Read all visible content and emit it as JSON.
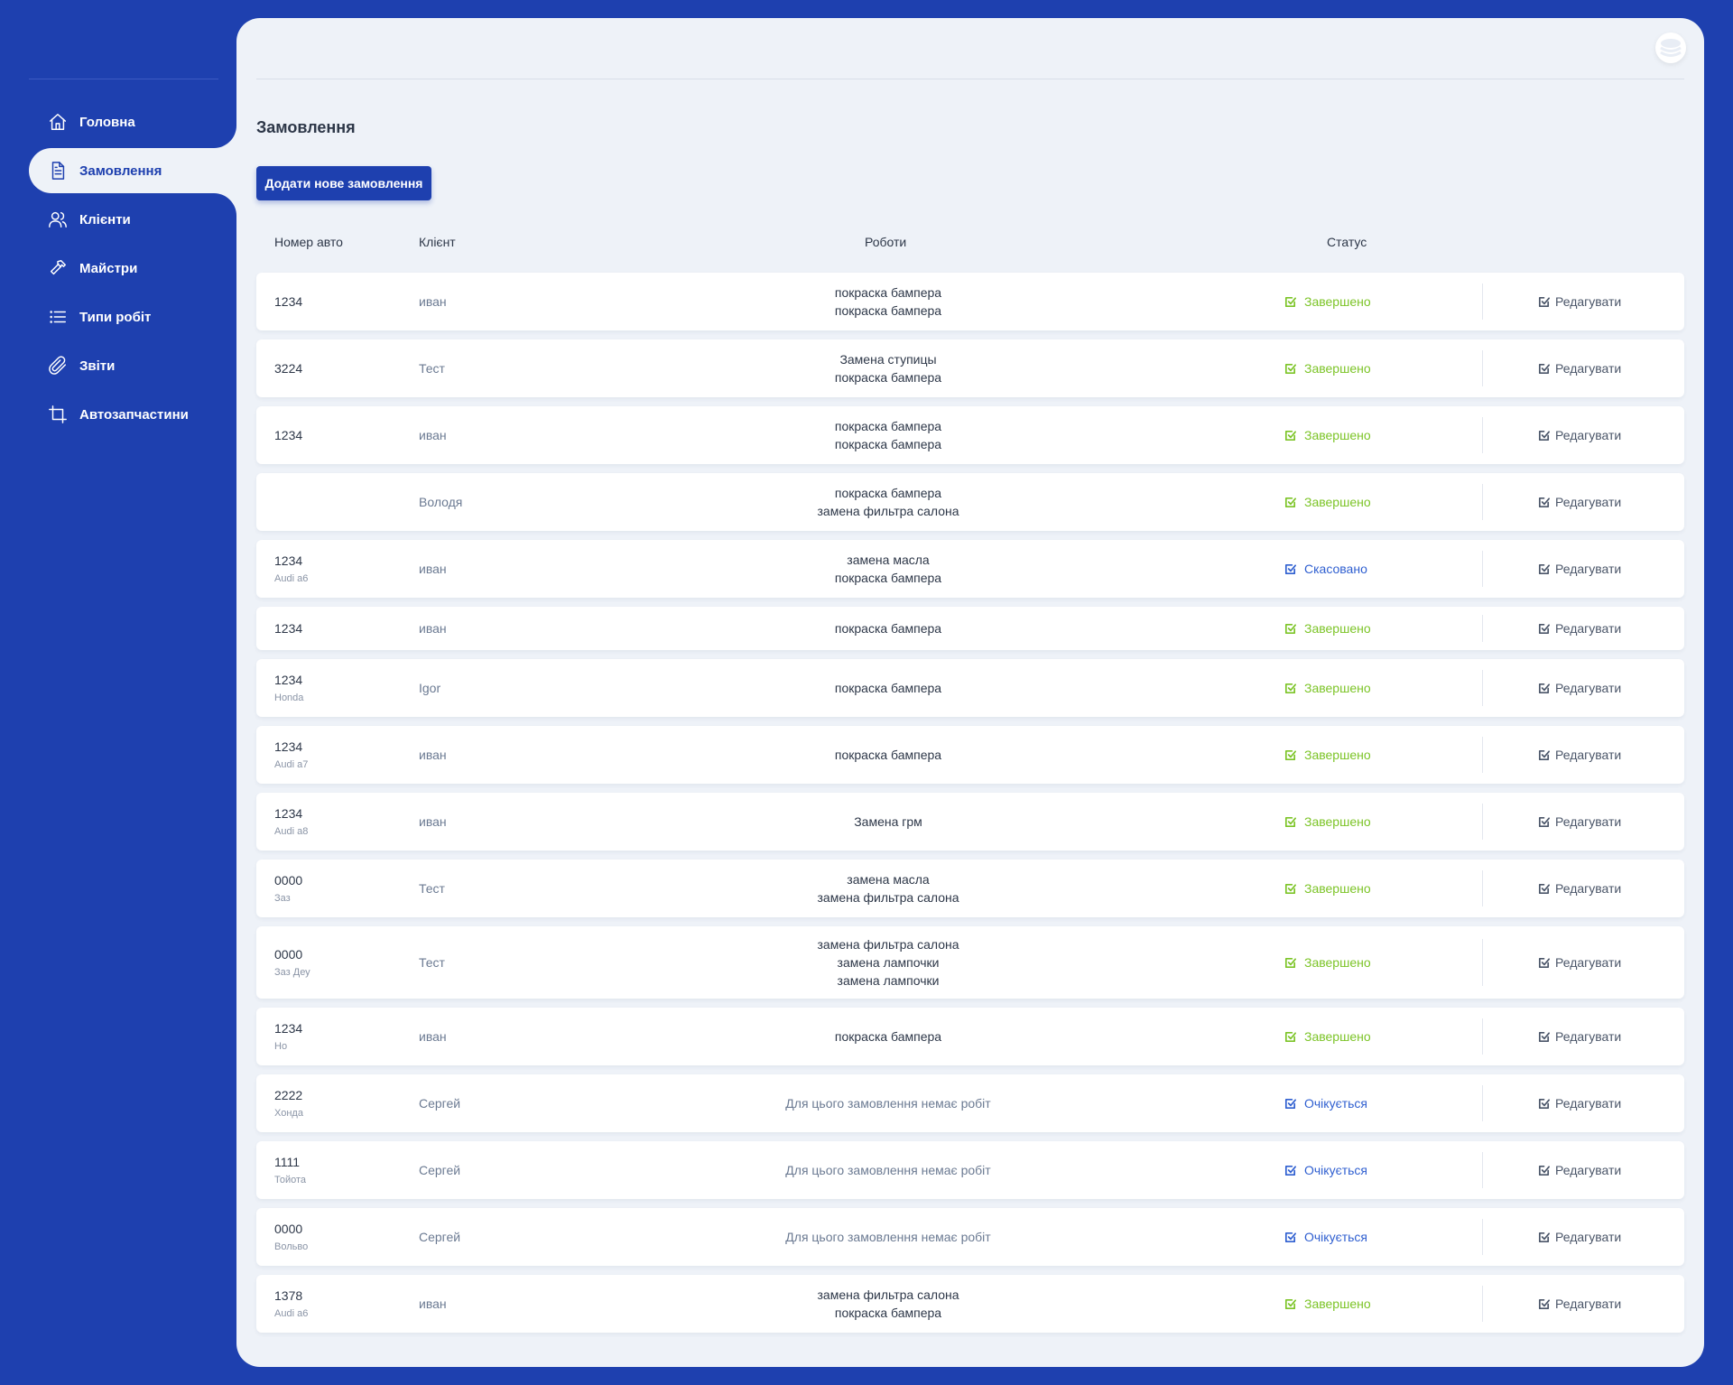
{
  "sidebar": {
    "items": [
      {
        "label": "Головна",
        "icon": "home-icon",
        "active": false
      },
      {
        "label": "Замовлення",
        "icon": "document-icon",
        "active": true
      },
      {
        "label": "Клієнти",
        "icon": "users-icon",
        "active": false
      },
      {
        "label": "Майстри",
        "icon": "hammer-icon",
        "active": false
      },
      {
        "label": "Типи робіт",
        "icon": "list-icon",
        "active": false
      },
      {
        "label": "Звіти",
        "icon": "paperclip-icon",
        "active": false
      },
      {
        "label": "Автозапчастини",
        "icon": "crop-icon",
        "active": false
      }
    ]
  },
  "main": {
    "title": "Замовлення",
    "add_button": "Додати нове замовлення",
    "columns": {
      "plate": "Номер авто",
      "client": "Клієнт",
      "works": "Роботи",
      "status": "Статус"
    },
    "edit_label": "Редагувати"
  },
  "colors": {
    "brand": "#1e40af",
    "panel": "#eef2f8",
    "status_done": "#7cc427",
    "status_cancelled": "#2f5fd0",
    "status_pending": "#2f5fd0"
  },
  "orders": [
    {
      "plate": "1234",
      "model": "",
      "client": "иван",
      "works": [
        "покраска бампера",
        "покраска бампера"
      ],
      "status": "Завершено",
      "status_type": "done"
    },
    {
      "plate": "3224",
      "model": "",
      "client": "Тест",
      "works": [
        "Замена ступицы",
        "покраска бампера"
      ],
      "status": "Завершено",
      "status_type": "done"
    },
    {
      "plate": "1234",
      "model": "",
      "client": "иван",
      "works": [
        "покраска бампера",
        "покраска бампера"
      ],
      "status": "Завершено",
      "status_type": "done"
    },
    {
      "plate": "",
      "model": "",
      "client": "Володя",
      "works": [
        "покраска бампера",
        "замена фильтра салона"
      ],
      "status": "Завершено",
      "status_type": "done"
    },
    {
      "plate": "1234",
      "model": "Audi a6",
      "client": "иван",
      "works": [
        "замена масла",
        "покраска бампера"
      ],
      "status": "Скасовано",
      "status_type": "cancelled"
    },
    {
      "plate": "1234",
      "model": "",
      "client": "иван",
      "works": [
        "покраска бампера"
      ],
      "status": "Завершено",
      "status_type": "done"
    },
    {
      "plate": "1234",
      "model": "Honda",
      "client": "Igor",
      "works": [
        "покраска бампера"
      ],
      "status": "Завершено",
      "status_type": "done"
    },
    {
      "plate": "1234",
      "model": "Audi a7",
      "client": "иван",
      "works": [
        "покраска бампера"
      ],
      "status": "Завершено",
      "status_type": "done"
    },
    {
      "plate": "1234",
      "model": "Audi a8",
      "client": "иван",
      "works": [
        "Замена грм"
      ],
      "status": "Завершено",
      "status_type": "done"
    },
    {
      "plate": "0000",
      "model": "Заз",
      "client": "Тест",
      "works": [
        "замена масла",
        "замена фильтра салона"
      ],
      "status": "Завершено",
      "status_type": "done"
    },
    {
      "plate": "0000",
      "model": "Заз Деу",
      "client": "Тест",
      "works": [
        "замена фильтра салона",
        "замена лампочки",
        "замена лампочки"
      ],
      "status": "Завершено",
      "status_type": "done"
    },
    {
      "plate": "1234",
      "model": "Но",
      "client": "иван",
      "works": [
        "покраска бампера"
      ],
      "status": "Завершено",
      "status_type": "done"
    },
    {
      "plate": "2222",
      "model": "Хонда",
      "client": "Сергей",
      "works": [
        "Для цього замовлення немає робіт"
      ],
      "status": "Очікується",
      "status_type": "pending",
      "no_works": true
    },
    {
      "plate": "1111",
      "model": "Тойота",
      "client": "Сергей",
      "works": [
        "Для цього замовлення немає робіт"
      ],
      "status": "Очікується",
      "status_type": "pending",
      "no_works": true
    },
    {
      "plate": "0000",
      "model": "Вольво",
      "client": "Сергей",
      "works": [
        "Для цього замовлення немає робіт"
      ],
      "status": "Очікується",
      "status_type": "pending",
      "no_works": true
    },
    {
      "plate": "1378",
      "model": "Audi a6",
      "client": "иван",
      "works": [
        "замена фильтра салона",
        "покраска бампера"
      ],
      "status": "Завершено",
      "status_type": "done"
    }
  ]
}
